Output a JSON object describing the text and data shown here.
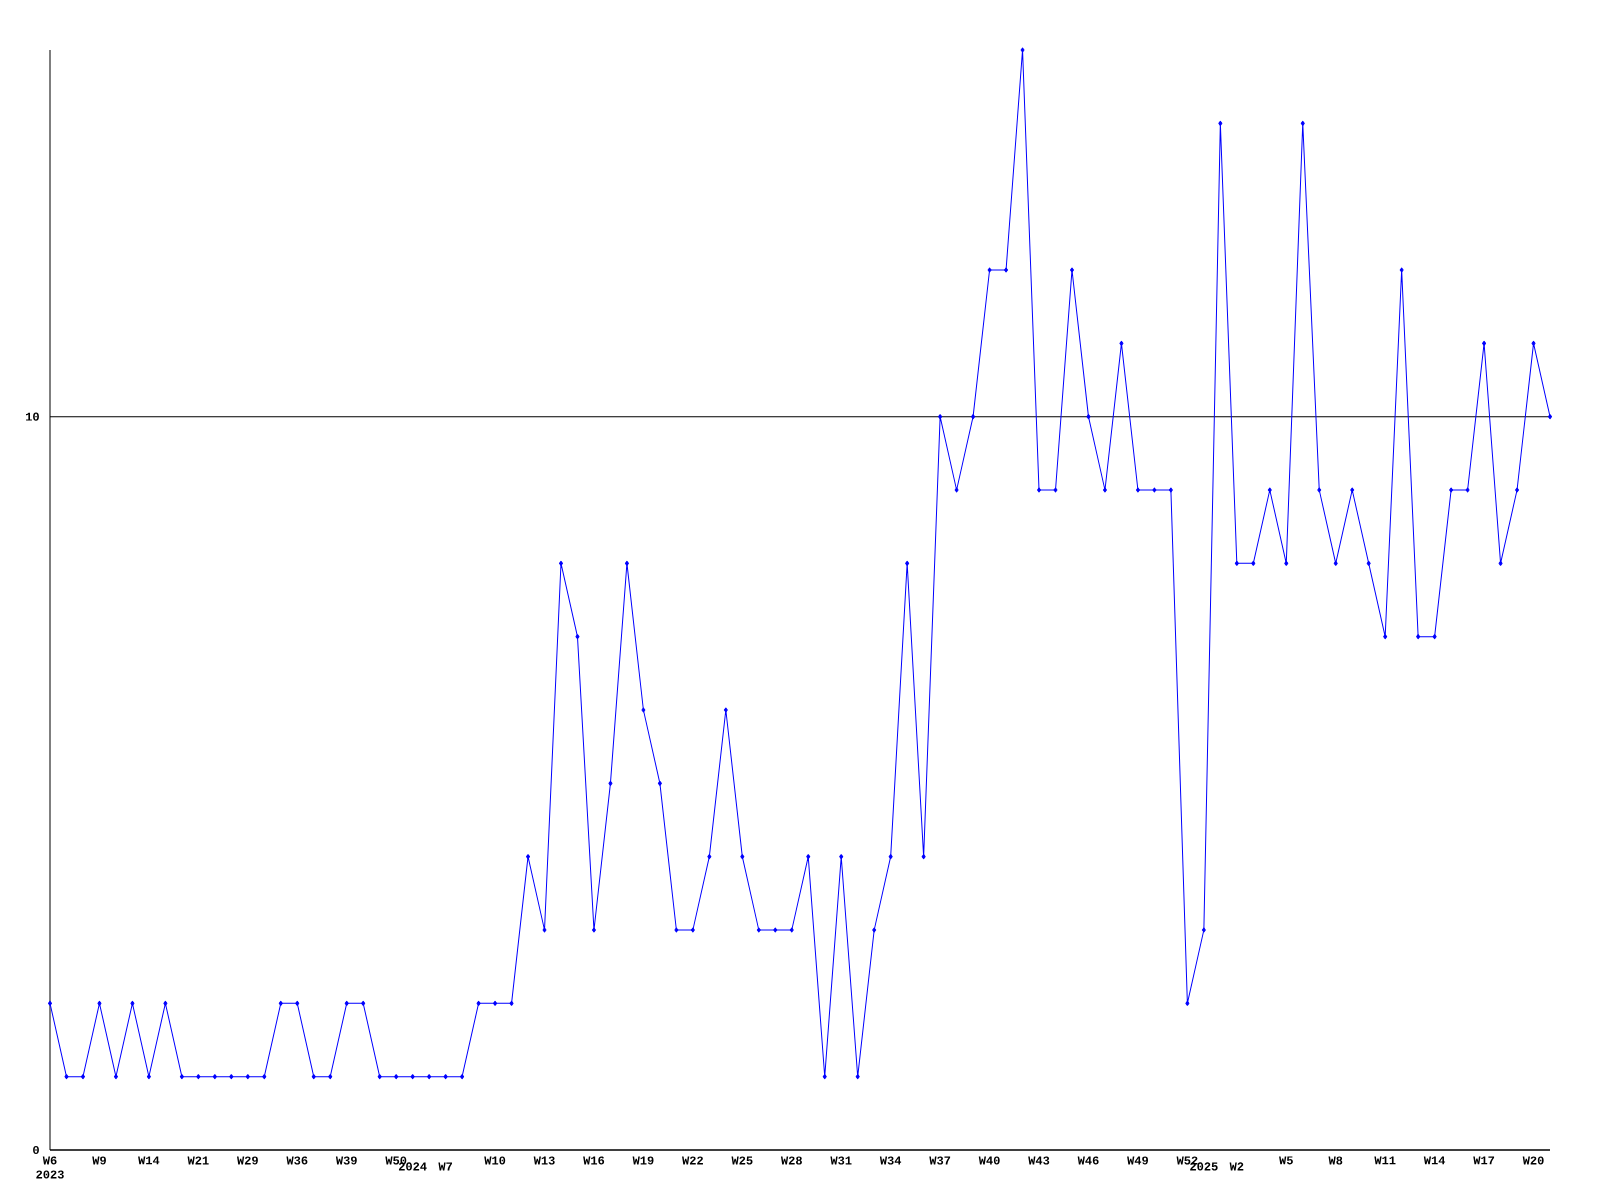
{
  "chart_data": {
    "type": "line",
    "categories": [
      "W6 2023",
      null,
      null,
      "W9",
      null,
      null,
      "W14",
      null,
      null,
      "W21",
      null,
      null,
      "W29",
      null,
      null,
      "W36",
      null,
      null,
      "W39",
      null,
      null,
      "W50",
      "2024",
      null,
      "W7",
      null,
      null,
      "W10",
      null,
      null,
      "W13",
      null,
      null,
      "W16",
      null,
      null,
      "W19",
      null,
      null,
      "W22",
      null,
      null,
      "W25",
      null,
      null,
      "W28",
      null,
      null,
      "W31",
      null,
      null,
      "W34",
      null,
      null,
      "W37",
      null,
      null,
      "W40",
      null,
      null,
      "W43",
      null,
      null,
      "W46",
      null,
      null,
      "W49",
      null,
      null,
      "W52",
      "2025",
      null,
      "W2",
      null,
      null,
      "W5",
      null,
      null,
      "W8",
      null,
      null,
      "W11",
      null,
      null,
      "W14",
      null,
      null,
      "W17",
      null,
      null,
      "W20",
      null
    ],
    "values": [
      2,
      1,
      1,
      2,
      1,
      2,
      1,
      2,
      1,
      1,
      1,
      1,
      1,
      1,
      2,
      2,
      1,
      1,
      2,
      2,
      1,
      1,
      1,
      1,
      1,
      1,
      2,
      2,
      2,
      4,
      3,
      8,
      7,
      3,
      5,
      8,
      6,
      5,
      3,
      3,
      4,
      6,
      4,
      3,
      3,
      3,
      4,
      1,
      4,
      1,
      3,
      4,
      8,
      4,
      10,
      9,
      10,
      12,
      12,
      15,
      9,
      9,
      12,
      10,
      9,
      11,
      9,
      9,
      9,
      2,
      3,
      14,
      8,
      8,
      9,
      8,
      14,
      9,
      8,
      9,
      8,
      7,
      12,
      7,
      7,
      9,
      9,
      11,
      8,
      9,
      11,
      10
    ],
    "color": "#0000ff",
    "ylim": [
      0,
      15
    ],
    "yticks": [
      0,
      10
    ],
    "grid": "y",
    "marker": "diamond",
    "line_style": "solid"
  }
}
